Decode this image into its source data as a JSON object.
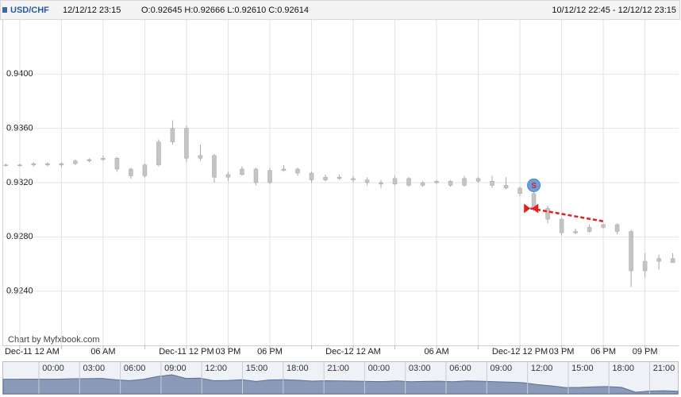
{
  "chart_data": {
    "type": "candlestick",
    "header": {
      "symbol": "USD/CHF",
      "time": "12/12/12 23:15",
      "ohlc": "O:0.92645 H:0.92666 L:0.92610 C:0.92614"
    },
    "credit": "Chart by Myfxbook.com",
    "color": "#c4c4c4",
    "wick_color": "#a8a8a8",
    "xlim": [
      "10/12/12 22:45",
      "12/12/12 23:15"
    ],
    "ylim": [
      0.92,
      0.944
    ],
    "grid": true,
    "yticks": [
      {
        "value": 0.924,
        "label": "0.9240"
      },
      {
        "value": 0.928,
        "label": "0.9280"
      },
      {
        "value": 0.932,
        "label": "0.9320"
      },
      {
        "value": 0.936,
        "label": "0.9360"
      },
      {
        "value": 0.94,
        "label": "0.9400"
      }
    ],
    "xticks": [
      {
        "value": "11/12/12 00:00",
        "label": "Dec-11 12 AM"
      },
      {
        "value": "11/12/12 03:00",
        "label": null
      },
      {
        "value": "11/12/12 06:00",
        "label": "06 AM"
      },
      {
        "value": "11/12/12 09:00",
        "label": null
      },
      {
        "value": "11/12/12 12:00",
        "label": "Dec-11 12 PM"
      },
      {
        "value": "11/12/12 15:00",
        "label": "03 PM"
      },
      {
        "value": "11/12/12 18:00",
        "label": "06 PM"
      },
      {
        "value": "11/12/12 21:00",
        "label": null
      },
      {
        "value": "12/12/12 00:00",
        "label": "Dec-12 12 AM"
      },
      {
        "value": "12/12/12 03:00",
        "label": null
      },
      {
        "value": "12/12/12 06:00",
        "label": "06 AM"
      },
      {
        "value": "12/12/12 09:00",
        "label": null
      },
      {
        "value": "12/12/12 12:00",
        "label": "Dec-12 12 PM"
      },
      {
        "value": "12/12/12 15:00",
        "label": "03 PM"
      },
      {
        "value": "12/12/12 18:00",
        "label": "06 PM"
      },
      {
        "value": "12/12/12 21:00",
        "label": "09 PM"
      }
    ],
    "x": [
      "10/12/12 23:00",
      "11/12/12 00:00",
      "11/12/12 01:00",
      "11/12/12 02:00",
      "11/12/12 03:00",
      "11/12/12 04:00",
      "11/12/12 05:00",
      "11/12/12 06:00",
      "11/12/12 07:00",
      "11/12/12 08:00",
      "11/12/12 09:00",
      "11/12/12 10:00",
      "11/12/12 11:00",
      "11/12/12 12:00",
      "11/12/12 13:00",
      "11/12/12 14:00",
      "11/12/12 15:00",
      "11/12/12 16:00",
      "11/12/12 17:00",
      "11/12/12 18:00",
      "11/12/12 19:00",
      "11/12/12 20:00",
      "11/12/12 21:00",
      "11/12/12 22:00",
      "11/12/12 23:00",
      "12/12/12 00:00",
      "12/12/12 01:00",
      "12/12/12 02:00",
      "12/12/12 03:00",
      "12/12/12 04:00",
      "12/12/12 05:00",
      "12/12/12 06:00",
      "12/12/12 07:00",
      "12/12/12 08:00",
      "12/12/12 09:00",
      "12/12/12 10:00",
      "12/12/12 11:00",
      "12/12/12 12:00",
      "12/12/12 13:00",
      "12/12/12 14:00",
      "12/12/12 15:00",
      "12/12/12 16:00",
      "12/12/12 17:00",
      "12/12/12 18:00",
      "12/12/12 19:00",
      "12/12/12 20:00",
      "12/12/12 21:00",
      "12/12/12 22:00",
      "12/12/12 23:00"
    ],
    "open": [
      0.9333,
      0.9333,
      0.9333,
      0.9334,
      0.9333,
      0.9334,
      0.9336,
      0.9337,
      0.9338,
      0.933,
      0.9325,
      0.9333,
      0.935,
      0.936,
      0.9338,
      0.934,
      0.9324,
      0.9326,
      0.933,
      0.932,
      0.9329,
      0.933,
      0.9327,
      0.9322,
      0.9324,
      0.9323,
      0.9322,
      0.932,
      0.9319,
      0.9323,
      0.9318,
      0.932,
      0.9321,
      0.9318,
      0.9323,
      0.9321,
      0.9318,
      0.9316,
      0.9312,
      0.9301,
      0.9293,
      0.9283,
      0.9284,
      0.9287,
      0.9289,
      0.9284,
      0.9255,
      0.9262,
      0.9264
    ],
    "high": [
      0.9334,
      0.9334,
      0.9335,
      0.9335,
      0.9335,
      0.9337,
      0.9338,
      0.934,
      0.9339,
      0.9331,
      0.9334,
      0.9352,
      0.9366,
      0.9362,
      0.9348,
      0.9341,
      0.9328,
      0.9332,
      0.9331,
      0.9331,
      0.9333,
      0.9331,
      0.9328,
      0.9326,
      0.9326,
      0.9325,
      0.9324,
      0.9322,
      0.9325,
      0.9324,
      0.9321,
      0.9322,
      0.9322,
      0.9325,
      0.9324,
      0.9325,
      0.9324,
      0.9317,
      0.9313,
      0.9303,
      0.9294,
      0.9286,
      0.9289,
      0.929,
      0.929,
      0.9285,
      0.9268,
      0.9267,
      0.9268
    ],
    "low": [
      0.9332,
      0.9332,
      0.9332,
      0.9332,
      0.9331,
      0.9333,
      0.9335,
      0.9336,
      0.9328,
      0.9323,
      0.9324,
      0.9332,
      0.9348,
      0.9335,
      0.9336,
      0.932,
      0.9321,
      0.9325,
      0.9318,
      0.9319,
      0.9328,
      0.9325,
      0.932,
      0.9321,
      0.9322,
      0.932,
      0.9318,
      0.9316,
      0.9318,
      0.9317,
      0.9317,
      0.9319,
      0.9317,
      0.9317,
      0.932,
      0.9316,
      0.9315,
      0.931,
      0.9299,
      0.929,
      0.9281,
      0.9282,
      0.9283,
      0.9286,
      0.9282,
      0.9243,
      0.925,
      0.9256,
      0.9261
    ],
    "close": [
      0.9333,
      0.9333,
      0.9334,
      0.9333,
      0.9334,
      0.9336,
      0.9337,
      0.9338,
      0.933,
      0.9325,
      0.9333,
      0.935,
      0.936,
      0.9338,
      0.934,
      0.9324,
      0.9326,
      0.933,
      0.932,
      0.9329,
      0.933,
      0.9327,
      0.9322,
      0.9324,
      0.9323,
      0.9322,
      0.932,
      0.9319,
      0.9323,
      0.9318,
      0.932,
      0.9321,
      0.9318,
      0.9323,
      0.9321,
      0.9318,
      0.9316,
      0.9312,
      0.9301,
      0.9293,
      0.9283,
      0.9284,
      0.9287,
      0.9289,
      0.9284,
      0.9255,
      0.9262,
      0.9264,
      0.9261
    ],
    "annotations": [
      {
        "label": "S",
        "x": "12/12/12 13:00",
        "y": 0.9318
      }
    ],
    "trade": {
      "x": [
        "12/12/12 12:45",
        "12/12/12 18:00"
      ],
      "y": [
        0.9301,
        0.92915
      ],
      "color": "#e0201e"
    },
    "navigator": {
      "labels": [
        "00:00",
        "03:00",
        "06:00",
        "09:00",
        "12:00",
        "15:00",
        "18:00",
        "21:00",
        "00:00",
        "03:00",
        "06:00",
        "09:00",
        "12:00",
        "15:00",
        "18:00",
        "21:00"
      ]
    }
  }
}
